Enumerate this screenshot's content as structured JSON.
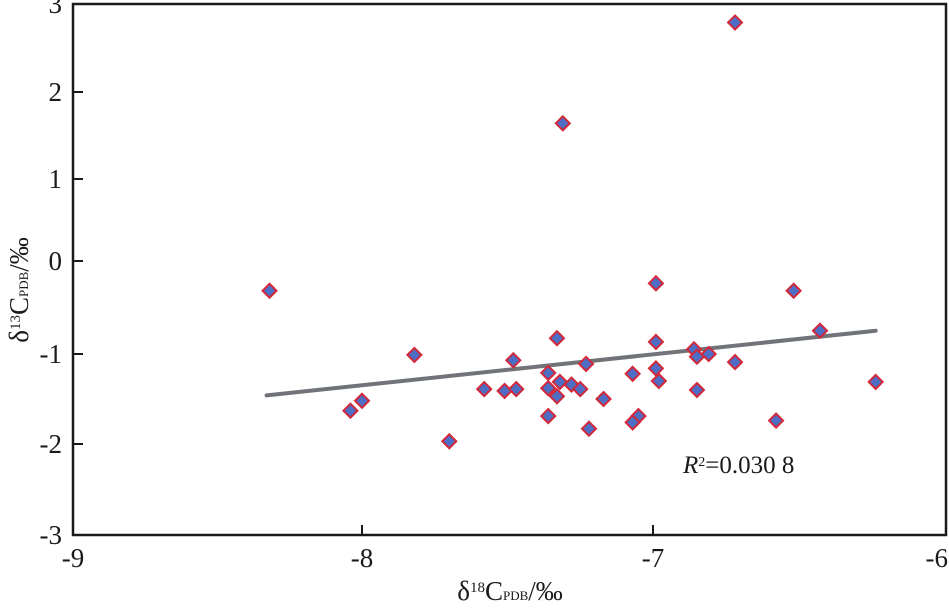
{
  "chart_data": {
    "type": "scatter",
    "title": "",
    "xlabel": {
      "prefix": "δ",
      "sup": "18",
      "main": "C",
      "sub": "PDB",
      "suffix": "/‰"
    },
    "ylabel": {
      "prefix": "δ",
      "sup": "13",
      "main": "C",
      "sub": "PDB",
      "suffix": "/‰"
    },
    "xlim": [
      -9,
      -6
    ],
    "ylim": [
      -3,
      3
    ],
    "xticks": [
      -9,
      -8,
      -7,
      -6
    ],
    "yticks": [
      3,
      2,
      1,
      0,
      -1,
      -2,
      -3
    ],
    "xtick_labels": [
      "-9",
      "-8",
      "-7",
      "-6"
    ],
    "ytick_labels": [
      "3",
      "2",
      "1",
      "0",
      "-1",
      "-2",
      "-3"
    ],
    "grid": false,
    "legend": "none",
    "marker": {
      "shape": "diamond",
      "fill": "#4d6ec4",
      "stroke": "#d3283a"
    },
    "trendline": {
      "color": "#707378",
      "x": [
        -8.33,
        -6.24
      ],
      "y": [
        -1.46,
        -0.75
      ]
    },
    "annotation": {
      "r_symbol": "R",
      "r_sup": "2",
      "text": "=0.030 8",
      "position": "lower-right"
    },
    "points": [
      {
        "x": -8.32,
        "y": -0.32
      },
      {
        "x": -7.82,
        "y": -1.01
      },
      {
        "x": -8.04,
        "y": -1.63
      },
      {
        "x": -8.0,
        "y": -1.52
      },
      {
        "x": -7.7,
        "y": -1.97
      },
      {
        "x": -7.58,
        "y": -1.39
      },
      {
        "x": -7.51,
        "y": -1.41
      },
      {
        "x": -7.47,
        "y": -1.39
      },
      {
        "x": -7.48,
        "y": -1.07
      },
      {
        "x": -7.33,
        "y": -0.83
      },
      {
        "x": -7.36,
        "y": -1.21
      },
      {
        "x": -7.36,
        "y": -1.38
      },
      {
        "x": -7.33,
        "y": -1.47
      },
      {
        "x": -7.32,
        "y": -1.31
      },
      {
        "x": -7.28,
        "y": -1.34
      },
      {
        "x": -7.25,
        "y": -1.39
      },
      {
        "x": -7.23,
        "y": -1.11
      },
      {
        "x": -7.17,
        "y": -1.5
      },
      {
        "x": -7.36,
        "y": -1.69
      },
      {
        "x": -7.22,
        "y": -1.83
      },
      {
        "x": -7.31,
        "y": 1.64
      },
      {
        "x": -6.72,
        "y": 2.79
      },
      {
        "x": -6.99,
        "y": -0.24
      },
      {
        "x": -6.99,
        "y": -0.87
      },
      {
        "x": -7.07,
        "y": -1.22
      },
      {
        "x": -6.99,
        "y": -1.16
      },
      {
        "x": -6.98,
        "y": -1.3
      },
      {
        "x": -7.05,
        "y": -1.69
      },
      {
        "x": -7.07,
        "y": -1.76
      },
      {
        "x": -6.86,
        "y": -0.95
      },
      {
        "x": -6.85,
        "y": -1.03
      },
      {
        "x": -6.81,
        "y": -1.0
      },
      {
        "x": -6.85,
        "y": -1.4
      },
      {
        "x": -6.72,
        "y": -1.09
      },
      {
        "x": -6.52,
        "y": -0.32
      },
      {
        "x": -6.43,
        "y": -0.75
      },
      {
        "x": -6.24,
        "y": -1.31
      },
      {
        "x": -6.58,
        "y": -1.74
      }
    ]
  }
}
